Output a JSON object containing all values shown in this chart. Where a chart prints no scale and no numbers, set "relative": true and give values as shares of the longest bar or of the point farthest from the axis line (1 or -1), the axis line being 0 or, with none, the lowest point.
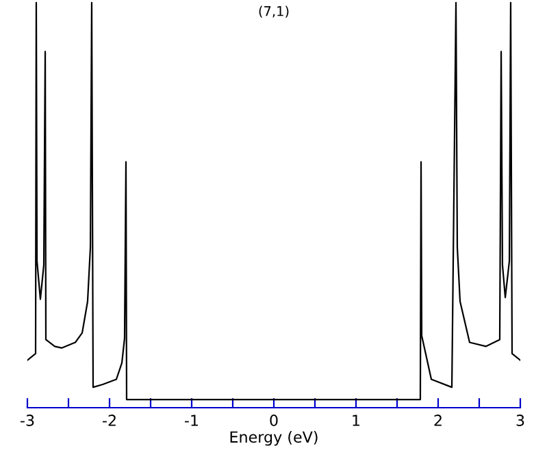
{
  "chart_data": {
    "type": "line",
    "title": "(7,1)",
    "xlabel": "Energy (eV)",
    "relative": true,
    "xlim": [
      -3,
      3
    ],
    "xticks": [
      -3,
      {
        "value": -2.5,
        "label": null
      },
      -2,
      {
        "value": -1.5,
        "label": null
      },
      -1,
      {
        "value": -0.5,
        "label": null
      },
      0,
      {
        "value": 0.5,
        "label": null
      },
      1,
      {
        "value": 1.5,
        "label": null
      },
      2,
      {
        "value": 2.5,
        "label": null
      },
      3
    ],
    "tick_labels": "x",
    "grid": false,
    "legend": false,
    "series": [
      {
        "color": "#000000",
        "x": [
          -3.0,
          -2.9,
          -2.892,
          -2.883,
          -2.842,
          -2.8,
          -2.783,
          -2.775,
          -2.667,
          -2.583,
          -2.417,
          -2.333,
          -2.267,
          -2.233,
          -2.217,
          -2.2,
          -2.083,
          -1.917,
          -1.85,
          -1.817,
          -1.8,
          -1.792,
          1.783,
          1.792,
          1.8,
          1.917,
          2.167,
          2.217,
          2.233,
          2.267,
          2.383,
          2.583,
          2.75,
          2.767,
          2.783,
          2.817,
          2.867,
          2.883,
          2.9,
          3.0
        ],
        "values": [
          0.099,
          0.116,
          1,
          0.349,
          0.253,
          0.339,
          0.877,
          0.151,
          0.134,
          0.13,
          0.144,
          0.168,
          0.247,
          0.384,
          1,
          0.031,
          0.038,
          0.051,
          0.092,
          0.154,
          0.599,
          0,
          0,
          0.599,
          0.161,
          0.051,
          0.031,
          1,
          0.384,
          0.247,
          0.144,
          0.134,
          0.151,
          0.877,
          0.339,
          0.257,
          0.349,
          1,
          0.116,
          0.099
        ]
      }
    ]
  }
}
